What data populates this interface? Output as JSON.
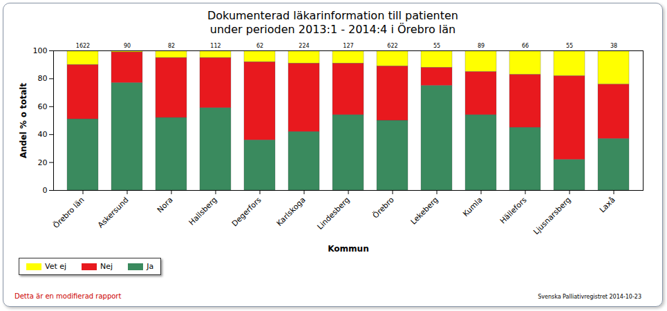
{
  "chart_data": {
    "type": "bar",
    "stacked": true,
    "title": "Dokumenterad läkarinformation till patienten",
    "subtitle": "under perioden 2013:1 - 2014:4 i Örebro län",
    "x_label": "Kommun",
    "y_label": "Andel % o totalt",
    "categories": [
      "Örebro län",
      "Askersund",
      "Nora",
      "Hallsberg",
      "Degerfors",
      "Karlskoga",
      "Lindesberg",
      "Örebro",
      "Lekeberg",
      "Kumla",
      "Hällefors",
      "Ljusnarsberg",
      "Laxå"
    ],
    "counts": [
      1622,
      90,
      82,
      112,
      62,
      224,
      127,
      622,
      55,
      89,
      66,
      55,
      38
    ],
    "series": [
      {
        "name": "Ja",
        "color": "#3a8a5e",
        "values": [
          51,
          77,
          52,
          59,
          36,
          42,
          54,
          50,
          75,
          54,
          45,
          22,
          37
        ]
      },
      {
        "name": "Nej",
        "color": "#e8191e",
        "values": [
          39,
          22,
          43,
          36,
          56,
          49,
          37,
          39,
          13,
          31,
          38,
          60,
          39
        ]
      },
      {
        "name": "Vet ej",
        "color": "#ffff00",
        "values": [
          10,
          1,
          5,
          5,
          8,
          9,
          9,
          11,
          12,
          15,
          17,
          18,
          24
        ]
      }
    ],
    "ylim": [
      0,
      100
    ],
    "yticks": [
      0,
      20,
      40,
      60,
      80,
      100
    ],
    "grid": false,
    "legend": "bottom-left",
    "annotations": [
      "Detta är en modifierad rapport",
      "Svenska Palliativregistret 2014-10-23"
    ]
  }
}
